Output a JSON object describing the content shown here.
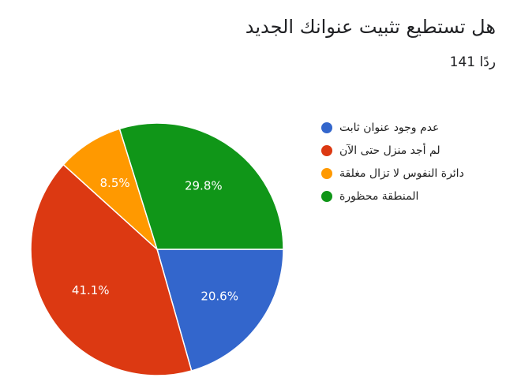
{
  "chart_data": {
    "type": "pie",
    "title": "هل تستطيع تثبيت عنوانك الجديد",
    "subtitle": "141 ردًا",
    "categories": [
      "عدم وجود عنوان ثابت",
      "لم أجد منزل حتى الآن",
      "دائرة النفوس لا تزال مغلقة",
      "المنطقة محظورة"
    ],
    "values": [
      20.6,
      41.1,
      8.5,
      29.8
    ],
    "value_labels": [
      "20.6%",
      "41.1%",
      "8.5%",
      "29.8%"
    ],
    "colors": [
      "#3366cc",
      "#dc3912",
      "#ff9900",
      "#109618"
    ]
  }
}
